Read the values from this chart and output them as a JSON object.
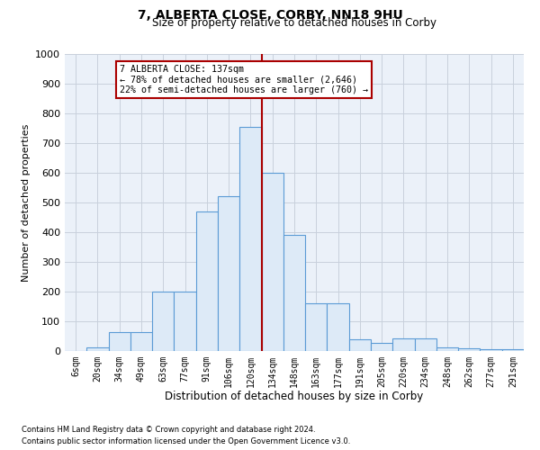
{
  "title": "7, ALBERTA CLOSE, CORBY, NN18 9HU",
  "subtitle": "Size of property relative to detached houses in Corby",
  "xlabel": "Distribution of detached houses by size in Corby",
  "ylabel": "Number of detached properties",
  "footer_line1": "Contains HM Land Registry data © Crown copyright and database right 2024.",
  "footer_line2": "Contains public sector information licensed under the Open Government Licence v3.0.",
  "bar_labels": [
    "6sqm",
    "20sqm",
    "34sqm",
    "49sqm",
    "63sqm",
    "77sqm",
    "91sqm",
    "106sqm",
    "120sqm",
    "134sqm",
    "148sqm",
    "163sqm",
    "177sqm",
    "191sqm",
    "205sqm",
    "220sqm",
    "234sqm",
    "248sqm",
    "262sqm",
    "277sqm",
    "291sqm"
  ],
  "bar_heights": [
    0,
    12,
    65,
    65,
    200,
    200,
    470,
    520,
    755,
    600,
    390,
    160,
    160,
    40,
    28,
    43,
    43,
    13,
    8,
    5,
    5
  ],
  "bar_color": "#DDEAF7",
  "bar_edge_color": "#5B9BD5",
  "ylim": [
    0,
    1000
  ],
  "yticks": [
    0,
    100,
    200,
    300,
    400,
    500,
    600,
    700,
    800,
    900,
    1000
  ],
  "vline_position": 8.5,
  "vline_color": "#AA0000",
  "annotation_title": "7 ALBERTA CLOSE: 137sqm",
  "annotation_line1": "← 78% of detached houses are smaller (2,646)",
  "annotation_line2": "22% of semi-detached houses are larger (760) →",
  "annotation_box_edgecolor": "#AA0000",
  "plot_bg_color": "#EBF1F9",
  "background_color": "#FFFFFF",
  "figsize": [
    6.0,
    5.0
  ],
  "dpi": 100
}
